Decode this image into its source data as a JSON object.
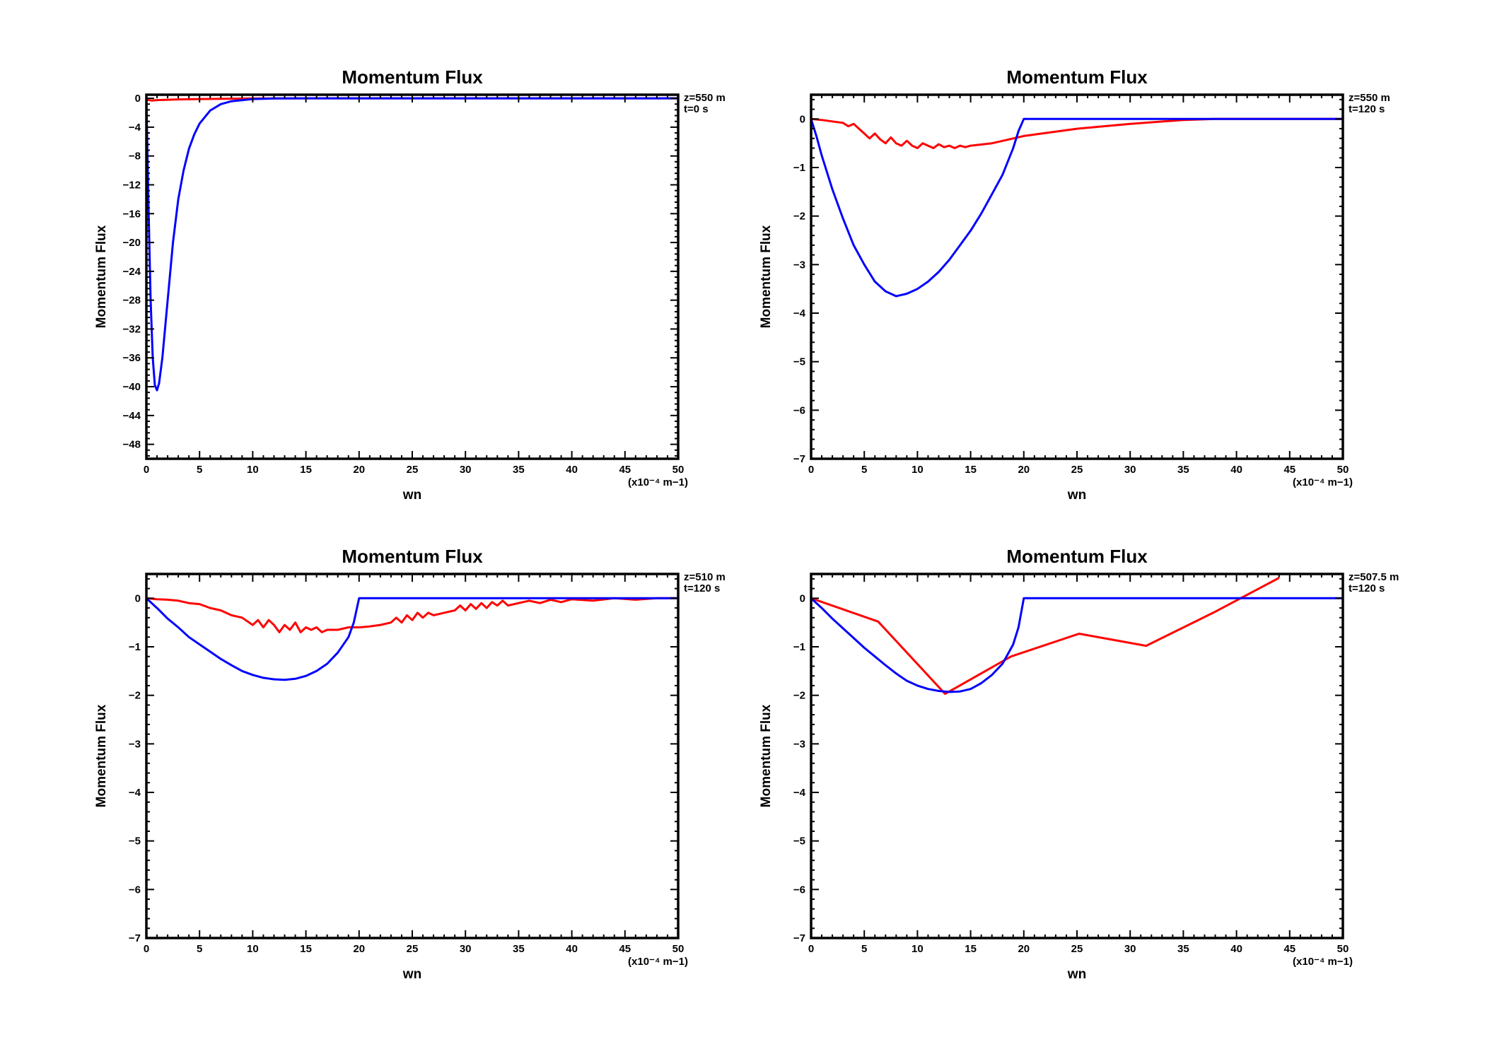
{
  "colors": {
    "red": "#ff0000",
    "blue": "#0000ff",
    "axis": "#000000",
    "background": "#ffffff"
  },
  "chart_data": [
    {
      "type": "line",
      "title": "Momentum Flux",
      "xlabel": "wn",
      "ylabel": "Momentum Flux",
      "x_unit_label": "(x10⁻⁴ m−1)",
      "annotations": [
        "z=550 m",
        "t=0 s"
      ],
      "xlim": [
        0,
        50
      ],
      "ylim": [
        -50,
        0.5
      ],
      "xticks": [
        0,
        5,
        10,
        15,
        20,
        25,
        30,
        35,
        40,
        45,
        50
      ],
      "yticks": [
        0,
        -4,
        -8,
        -12,
        -16,
        -20,
        -24,
        -28,
        -32,
        -36,
        -40,
        -44,
        -48
      ],
      "grid": false,
      "series": [
        {
          "color": "red",
          "points": [
            [
              0,
              -0.2
            ],
            [
              0.5,
              -0.3
            ],
            [
              1,
              -0.25
            ],
            [
              2,
              -0.2
            ],
            [
              3,
              -0.15
            ],
            [
              5,
              -0.1
            ],
            [
              8,
              -0.05
            ],
            [
              10,
              -0.02
            ],
            [
              15,
              0
            ],
            [
              20,
              0
            ],
            [
              50,
              0
            ]
          ]
        },
        {
          "color": "blue",
          "points": [
            [
              0,
              0
            ],
            [
              0.2,
              -15
            ],
            [
              0.4,
              -28
            ],
            [
              0.6,
              -36
            ],
            [
              0.8,
              -39.8
            ],
            [
              1,
              -40.5
            ],
            [
              1.2,
              -39.5
            ],
            [
              1.5,
              -36
            ],
            [
              2,
              -28
            ],
            [
              2.5,
              -20
            ],
            [
              3,
              -14
            ],
            [
              3.5,
              -10
            ],
            [
              4,
              -7
            ],
            [
              4.5,
              -5
            ],
            [
              5,
              -3.5
            ],
            [
              6,
              -1.7
            ],
            [
              7,
              -0.8
            ],
            [
              8,
              -0.4
            ],
            [
              10,
              -0.1
            ],
            [
              12,
              -0.02
            ],
            [
              15,
              0
            ],
            [
              50,
              0
            ]
          ]
        }
      ]
    },
    {
      "type": "line",
      "title": "Momentum Flux",
      "xlabel": "wn",
      "ylabel": "Momentum Flux",
      "x_unit_label": "(x10⁻⁴ m−1)",
      "annotations": [
        "z=550 m",
        "t=120 s"
      ],
      "xlim": [
        0,
        50
      ],
      "ylim": [
        -7,
        0.5
      ],
      "xticks": [
        0,
        5,
        10,
        15,
        20,
        25,
        30,
        35,
        40,
        45,
        50
      ],
      "yticks": [
        0,
        -1,
        -2,
        -3,
        -4,
        -5,
        -6,
        -7
      ],
      "grid": false,
      "series": [
        {
          "color": "red",
          "points": [
            [
              0,
              0
            ],
            [
              1,
              -0.02
            ],
            [
              2,
              -0.05
            ],
            [
              3,
              -0.08
            ],
            [
              3.5,
              -0.15
            ],
            [
              4,
              -0.1
            ],
            [
              4.5,
              -0.2
            ],
            [
              5,
              -0.3
            ],
            [
              5.5,
              -0.4
            ],
            [
              6,
              -0.3
            ],
            [
              6.5,
              -0.42
            ],
            [
              7,
              -0.5
            ],
            [
              7.5,
              -0.38
            ],
            [
              8,
              -0.5
            ],
            [
              8.5,
              -0.55
            ],
            [
              9,
              -0.45
            ],
            [
              9.5,
              -0.55
            ],
            [
              10,
              -0.6
            ],
            [
              10.5,
              -0.5
            ],
            [
              11,
              -0.55
            ],
            [
              11.5,
              -0.6
            ],
            [
              12,
              -0.52
            ],
            [
              12.5,
              -0.58
            ],
            [
              13,
              -0.55
            ],
            [
              13.5,
              -0.6
            ],
            [
              14,
              -0.55
            ],
            [
              14.5,
              -0.58
            ],
            [
              15,
              -0.55
            ],
            [
              17,
              -0.5
            ],
            [
              20,
              -0.35
            ],
            [
              25,
              -0.2
            ],
            [
              30,
              -0.1
            ],
            [
              35,
              -0.02
            ],
            [
              38,
              0
            ],
            [
              50,
              0
            ]
          ]
        },
        {
          "color": "blue",
          "points": [
            [
              0,
              0
            ],
            [
              0.5,
              -0.35
            ],
            [
              1,
              -0.75
            ],
            [
              2,
              -1.45
            ],
            [
              3,
              -2.05
            ],
            [
              4,
              -2.6
            ],
            [
              5,
              -3.0
            ],
            [
              6,
              -3.35
            ],
            [
              7,
              -3.55
            ],
            [
              8,
              -3.65
            ],
            [
              9,
              -3.6
            ],
            [
              10,
              -3.5
            ],
            [
              11,
              -3.35
            ],
            [
              12,
              -3.15
            ],
            [
              13,
              -2.9
            ],
            [
              14,
              -2.6
            ],
            [
              15,
              -2.3
            ],
            [
              16,
              -1.95
            ],
            [
              17,
              -1.55
            ],
            [
              18,
              -1.15
            ],
            [
              19,
              -0.6
            ],
            [
              19.5,
              -0.25
            ],
            [
              20,
              0
            ],
            [
              50,
              0
            ]
          ]
        }
      ]
    },
    {
      "type": "line",
      "title": "Momentum Flux",
      "xlabel": "wn",
      "ylabel": "Momentum Flux",
      "x_unit_label": "(x10⁻⁴ m−1)",
      "annotations": [
        "z=510 m",
        "t=120 s"
      ],
      "xlim": [
        0,
        50
      ],
      "ylim": [
        -7,
        0.5
      ],
      "xticks": [
        0,
        5,
        10,
        15,
        20,
        25,
        30,
        35,
        40,
        45,
        50
      ],
      "yticks": [
        0,
        -1,
        -2,
        -3,
        -4,
        -5,
        -6,
        -7
      ],
      "grid": false,
      "series": [
        {
          "color": "red",
          "points": [
            [
              0,
              0
            ],
            [
              1,
              -0.02
            ],
            [
              2,
              -0.03
            ],
            [
              3,
              -0.05
            ],
            [
              4,
              -0.1
            ],
            [
              5,
              -0.12
            ],
            [
              6,
              -0.2
            ],
            [
              7,
              -0.25
            ],
            [
              8,
              -0.35
            ],
            [
              9,
              -0.4
            ],
            [
              10,
              -0.55
            ],
            [
              10.5,
              -0.45
            ],
            [
              11,
              -0.6
            ],
            [
              11.5,
              -0.45
            ],
            [
              12,
              -0.55
            ],
            [
              12.5,
              -0.7
            ],
            [
              13,
              -0.55
            ],
            [
              13.5,
              -0.65
            ],
            [
              14,
              -0.5
            ],
            [
              14.5,
              -0.7
            ],
            [
              15,
              -0.6
            ],
            [
              15.5,
              -0.65
            ],
            [
              16,
              -0.6
            ],
            [
              16.5,
              -0.7
            ],
            [
              17,
              -0.65
            ],
            [
              18,
              -0.65
            ],
            [
              19,
              -0.6
            ],
            [
              20,
              -0.6
            ],
            [
              21,
              -0.58
            ],
            [
              22,
              -0.55
            ],
            [
              23,
              -0.5
            ],
            [
              23.5,
              -0.4
            ],
            [
              24,
              -0.5
            ],
            [
              24.5,
              -0.35
            ],
            [
              25,
              -0.45
            ],
            [
              25.5,
              -0.3
            ],
            [
              26,
              -0.4
            ],
            [
              26.5,
              -0.3
            ],
            [
              27,
              -0.35
            ],
            [
              28,
              -0.3
            ],
            [
              29,
              -0.25
            ],
            [
              29.5,
              -0.15
            ],
            [
              30,
              -0.25
            ],
            [
              30.5,
              -0.12
            ],
            [
              31,
              -0.22
            ],
            [
              31.5,
              -0.1
            ],
            [
              32,
              -0.2
            ],
            [
              32.5,
              -0.08
            ],
            [
              33,
              -0.15
            ],
            [
              33.5,
              -0.05
            ],
            [
              34,
              -0.15
            ],
            [
              35,
              -0.1
            ],
            [
              36,
              -0.05
            ],
            [
              37,
              -0.1
            ],
            [
              38,
              -0.03
            ],
            [
              39,
              -0.08
            ],
            [
              40,
              -0.02
            ],
            [
              42,
              -0.05
            ],
            [
              44,
              0
            ],
            [
              46,
              -0.03
            ],
            [
              48,
              0
            ],
            [
              50,
              0
            ]
          ]
        },
        {
          "color": "blue",
          "points": [
            [
              0,
              0
            ],
            [
              1,
              -0.2
            ],
            [
              2,
              -0.42
            ],
            [
              3,
              -0.6
            ],
            [
              4,
              -0.8
            ],
            [
              5,
              -0.95
            ],
            [
              6,
              -1.1
            ],
            [
              7,
              -1.25
            ],
            [
              8,
              -1.38
            ],
            [
              9,
              -1.5
            ],
            [
              10,
              -1.58
            ],
            [
              11,
              -1.64
            ],
            [
              12,
              -1.67
            ],
            [
              13,
              -1.68
            ],
            [
              14,
              -1.66
            ],
            [
              15,
              -1.6
            ],
            [
              16,
              -1.5
            ],
            [
              17,
              -1.35
            ],
            [
              18,
              -1.12
            ],
            [
              19,
              -0.8
            ],
            [
              19.5,
              -0.5
            ],
            [
              20,
              0
            ],
            [
              50,
              0
            ]
          ]
        }
      ]
    },
    {
      "type": "line",
      "title": "Momentum Flux",
      "xlabel": "wn",
      "ylabel": "Momentum Flux",
      "x_unit_label": "(x10⁻⁴ m−1)",
      "annotations": [
        "z=507.5 m",
        "t=120 s"
      ],
      "xlim": [
        0,
        50
      ],
      "ylim": [
        -7,
        0.5
      ],
      "xticks": [
        0,
        5,
        10,
        15,
        20,
        25,
        30,
        35,
        40,
        45,
        50
      ],
      "yticks": [
        0,
        -1,
        -2,
        -3,
        -4,
        -5,
        -6,
        -7
      ],
      "grid": false,
      "series": [
        {
          "color": "red",
          "points": [
            [
              0,
              0
            ],
            [
              6.3,
              -0.48
            ],
            [
              12.6,
              -1.97
            ],
            [
              18.8,
              -1.2
            ],
            [
              25.2,
              -0.73
            ],
            [
              31.5,
              -0.98
            ],
            [
              37.8,
              -0.3
            ],
            [
              44,
              0.42
            ]
          ]
        },
        {
          "color": "blue",
          "points": [
            [
              0,
              0
            ],
            [
              1,
              -0.2
            ],
            [
              2,
              -0.42
            ],
            [
              3,
              -0.62
            ],
            [
              4,
              -0.82
            ],
            [
              5,
              -1.02
            ],
            [
              6,
              -1.2
            ],
            [
              7,
              -1.38
            ],
            [
              8,
              -1.55
            ],
            [
              9,
              -1.7
            ],
            [
              10,
              -1.8
            ],
            [
              11,
              -1.87
            ],
            [
              12,
              -1.91
            ],
            [
              13,
              -1.93
            ],
            [
              14,
              -1.92
            ],
            [
              15,
              -1.87
            ],
            [
              16,
              -1.75
            ],
            [
              17,
              -1.58
            ],
            [
              18,
              -1.35
            ],
            [
              19,
              -0.95
            ],
            [
              19.5,
              -0.6
            ],
            [
              20,
              0
            ],
            [
              50,
              0
            ]
          ]
        }
      ]
    }
  ]
}
